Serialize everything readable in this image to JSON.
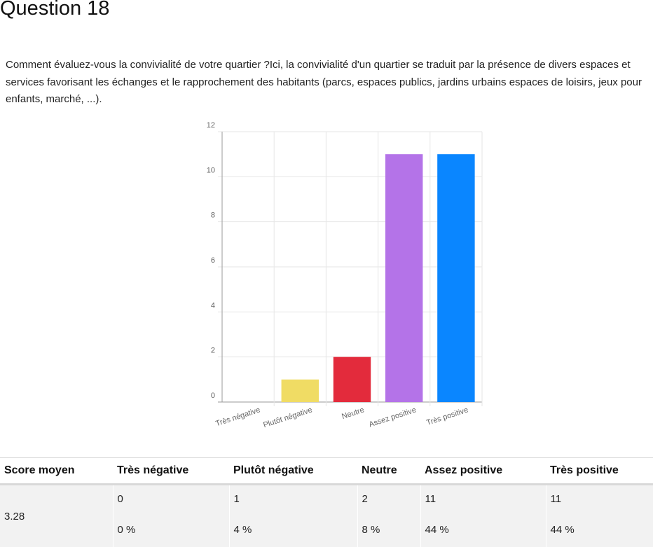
{
  "question": {
    "title": "Question 18",
    "text": "Comment évaluez-vous la convivialité de votre quartier ?Ici, la convivialité d'un quartier se traduit par la présence de divers espaces et services favorisant les échanges et le rapprochement des habitants (parcs, espaces publics, jardins urbains espaces de loisirs, jeux pour enfants, marché, ...)."
  },
  "chart_data": {
    "type": "bar",
    "categories": [
      "Très négative",
      "Plutôt négative",
      "Neutre",
      "Assez positive",
      "Très positive"
    ],
    "values": [
      0,
      1,
      2,
      11,
      11
    ],
    "colors": [
      "#9e9e9e",
      "#f0dc64",
      "#e32b3c",
      "#b473e8",
      "#0a86ff"
    ],
    "title": "",
    "xlabel": "",
    "ylabel": "",
    "ylim": [
      0,
      12
    ],
    "yticks": [
      0,
      2,
      4,
      6,
      8,
      10,
      12
    ],
    "grid": true,
    "legend": "none"
  },
  "table": {
    "headers": [
      "Score moyen",
      "Très négative",
      "Plutôt négative",
      "Neutre",
      "Assez positive",
      "Très positive"
    ],
    "score": "3.28",
    "counts": [
      "0",
      "1",
      "2",
      "11",
      "11"
    ],
    "percents": [
      "0 %",
      "4 %",
      "8 %",
      "44 %",
      "44 %"
    ]
  }
}
